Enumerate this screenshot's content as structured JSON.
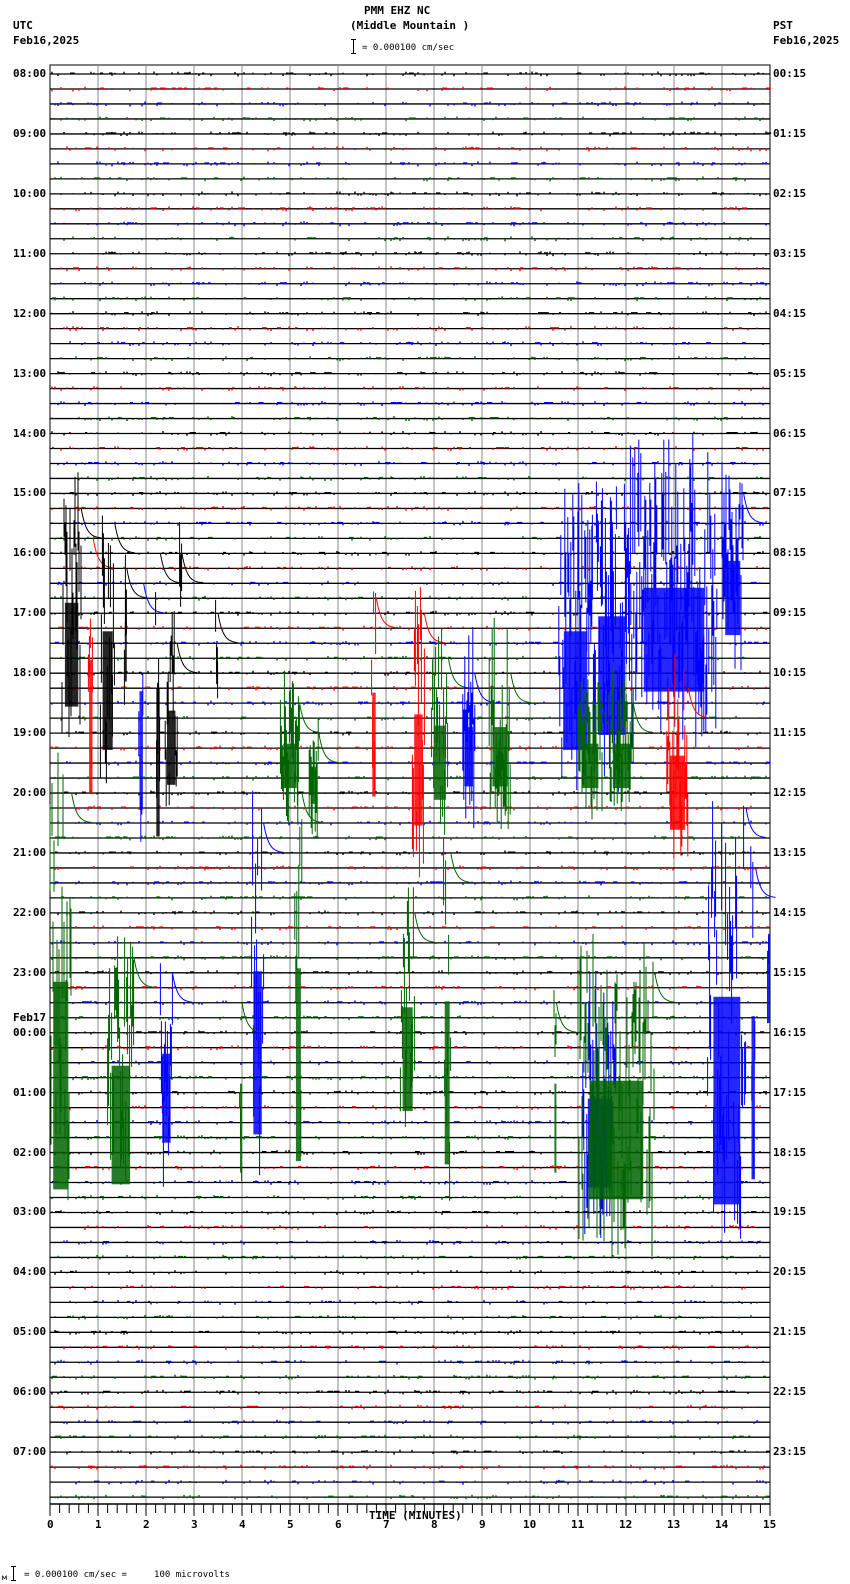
{
  "header": {
    "station": "PMM EHZ NC",
    "location": "(Middle Mountain )",
    "scale_label": "= 0.000100 cm/sec",
    "left_tz": "UTC",
    "left_date": "Feb16,2025",
    "right_tz": "PST",
    "right_date": "Feb16,2025"
  },
  "footer": {
    "legend": "= 0.000100 cm/sec =     100 microvolts",
    "legend_prefix": "м"
  },
  "chart_data": {
    "type": "line",
    "title": "PMM EHZ NC (Middle Mountain )",
    "subtitle": "= 0.000100 cm/sec",
    "xlabel": "TIME (MINUTES)",
    "ylabel": "",
    "x_ticks": [
      "0",
      "1",
      "2",
      "3",
      "4",
      "5",
      "6",
      "7",
      "8",
      "9",
      "10",
      "11",
      "12",
      "13",
      "14",
      "15"
    ],
    "xlim": [
      0,
      15
    ],
    "grid": true,
    "traces_per_hour": 4,
    "trace_count": 96,
    "trace_colors": [
      "#000000",
      "#ff0000",
      "#0000ff",
      "#006400"
    ],
    "left_labels": [
      {
        "row": 0,
        "text": "08:00"
      },
      {
        "row": 4,
        "text": "09:00"
      },
      {
        "row": 8,
        "text": "10:00"
      },
      {
        "row": 12,
        "text": "11:00"
      },
      {
        "row": 16,
        "text": "12:00"
      },
      {
        "row": 20,
        "text": "13:00"
      },
      {
        "row": 24,
        "text": "14:00"
      },
      {
        "row": 28,
        "text": "15:00"
      },
      {
        "row": 32,
        "text": "16:00"
      },
      {
        "row": 36,
        "text": "17:00"
      },
      {
        "row": 40,
        "text": "18:00"
      },
      {
        "row": 44,
        "text": "19:00"
      },
      {
        "row": 48,
        "text": "20:00"
      },
      {
        "row": 52,
        "text": "21:00"
      },
      {
        "row": 56,
        "text": "22:00"
      },
      {
        "row": 60,
        "text": "23:00"
      },
      {
        "row": 64,
        "text": "00:00",
        "date": "Feb17"
      },
      {
        "row": 68,
        "text": "01:00"
      },
      {
        "row": 72,
        "text": "02:00"
      },
      {
        "row": 76,
        "text": "03:00"
      },
      {
        "row": 80,
        "text": "04:00"
      },
      {
        "row": 84,
        "text": "05:00"
      },
      {
        "row": 88,
        "text": "06:00"
      },
      {
        "row": 92,
        "text": "07:00"
      }
    ],
    "right_labels": [
      "00:15",
      "01:15",
      "02:15",
      "03:15",
      "04:15",
      "05:15",
      "06:15",
      "07:15",
      "08:15",
      "09:15",
      "10:15",
      "11:15",
      "12:15",
      "13:15",
      "14:15",
      "15:15",
      "16:15",
      "17:15",
      "18:15",
      "19:15",
      "20:15",
      "21:15",
      "22:15",
      "23:15"
    ],
    "events": [
      {
        "row": 29,
        "x0": 0.25,
        "x1": 0.65,
        "rows_down": 14,
        "amp": 50,
        "color": "#000000",
        "tail": true
      },
      {
        "row": 31,
        "x0": 0.8,
        "x1": 0.9,
        "rows_down": 18,
        "amp": 30,
        "color": "#ff0000",
        "tail": true
      },
      {
        "row": 30,
        "x0": 1.05,
        "x1": 1.35,
        "rows_down": 16,
        "amp": 45,
        "color": "#000000",
        "tail": true
      },
      {
        "row": 33,
        "x0": 1.55,
        "x1": 1.6,
        "rows_down": 8,
        "amp": 45,
        "color": "#000000",
        "tail": true
      },
      {
        "row": 34,
        "x0": 1.85,
        "x1": 1.95,
        "rows_down": 16,
        "amp": 30,
        "color": "#0000ff",
        "tail": true
      },
      {
        "row": 32,
        "x0": 2.2,
        "x1": 2.3,
        "rows_down": 20,
        "amp": 45,
        "color": "#000000",
        "tail": true
      },
      {
        "row": 38,
        "x0": 2.4,
        "x1": 2.65,
        "rows_down": 10,
        "amp": 35,
        "color": "#000000",
        "tail": true
      },
      {
        "row": 32,
        "x0": 2.7,
        "x1": 2.75,
        "rows_down": 2,
        "amp": 40,
        "color": "#000000",
        "tail": true
      },
      {
        "row": 36,
        "x0": 3.45,
        "x1": 3.5,
        "rows_down": 5,
        "amp": 30,
        "color": "#000000",
        "tail": true
      },
      {
        "row": 42,
        "x0": 4.8,
        "x1": 5.2,
        "rows_down": 6,
        "amp": 50,
        "color": "#006400",
        "tail": true
      },
      {
        "row": 44,
        "x0": 5.4,
        "x1": 5.6,
        "rows_down": 5,
        "amp": 40,
        "color": "#006400",
        "tail": true
      },
      {
        "row": 35,
        "x0": 6.7,
        "x1": 6.8,
        "rows_down": 14,
        "amp": 35,
        "color": "#ff0000",
        "tail": true
      },
      {
        "row": 36,
        "x0": 7.55,
        "x1": 7.8,
        "rows_down": 15,
        "amp": 60,
        "color": "#ff0000",
        "tail": true
      },
      {
        "row": 39,
        "x0": 7.95,
        "x1": 8.3,
        "rows_down": 10,
        "amp": 40,
        "color": "#006400",
        "tail": true
      },
      {
        "row": 40,
        "x0": 8.6,
        "x1": 8.85,
        "rows_down": 8,
        "amp": 60,
        "color": "#0000ff",
        "tail": true
      },
      {
        "row": 40,
        "x0": 9.15,
        "x1": 9.6,
        "rows_down": 8,
        "amp": 60,
        "color": "#006400",
        "tail": true
      },
      {
        "row": 30,
        "x0": 10.6,
        "x1": 11.3,
        "rows_down": 16,
        "amp": 70,
        "color": "#0000ff",
        "tail": false
      },
      {
        "row": 29,
        "x0": 11.3,
        "x1": 12.1,
        "rows_down": 16,
        "amp": 70,
        "color": "#0000ff",
        "tail": false
      },
      {
        "row": 42,
        "x0": 11.0,
        "x1": 11.5,
        "rows_down": 6,
        "amp": 40,
        "color": "#006400",
        "tail": true
      },
      {
        "row": 42,
        "x0": 11.65,
        "x1": 12.15,
        "rows_down": 6,
        "amp": 40,
        "color": "#006400",
        "tail": true
      },
      {
        "row": 28,
        "x0": 12.1,
        "x1": 13.9,
        "rows_down": 14,
        "amp": 70,
        "color": "#0000ff",
        "tail": false
      },
      {
        "row": 41,
        "x0": 12.85,
        "x1": 13.3,
        "rows_down": 10,
        "amp": 50,
        "color": "#ff0000",
        "tail": true
      },
      {
        "row": 28,
        "x0": 14.0,
        "x1": 14.45,
        "rows_down": 10,
        "amp": 60,
        "color": "#0000ff",
        "tail": true
      },
      {
        "row": 48,
        "x0": 0.0,
        "x1": 0.45,
        "rows_down": 28,
        "amp": 60,
        "color": "#006400",
        "tail": true
      },
      {
        "row": 59,
        "x0": 1.2,
        "x1": 1.75,
        "rows_down": 16,
        "amp": 60,
        "color": "#006400",
        "tail": true
      },
      {
        "row": 60,
        "x0": 2.3,
        "x1": 2.55,
        "rows_down": 12,
        "amp": 55,
        "color": "#0000ff",
        "tail": true
      },
      {
        "row": 50,
        "x0": 4.2,
        "x1": 4.45,
        "rows_down": 22,
        "amp": 60,
        "color": "#0000ff",
        "tail": true
      },
      {
        "row": 62,
        "x0": 3.95,
        "x1": 4.0,
        "rows_down": 12,
        "amp": 20,
        "color": "#006400",
        "tail": true
      },
      {
        "row": 48,
        "x0": 5.1,
        "x1": 5.25,
        "rows_down": 26,
        "amp": 50,
        "color": "#006400",
        "tail": true
      },
      {
        "row": 56,
        "x0": 7.3,
        "x1": 7.6,
        "rows_down": 14,
        "amp": 50,
        "color": "#006400",
        "tail": true
      },
      {
        "row": 52,
        "x0": 8.2,
        "x1": 8.35,
        "rows_down": 22,
        "amp": 50,
        "color": "#006400",
        "tail": true
      },
      {
        "row": 62,
        "x0": 10.5,
        "x1": 10.55,
        "rows_down": 12,
        "amp": 20,
        "color": "#006400",
        "tail": true
      },
      {
        "row": 63,
        "x0": 11.1,
        "x1": 11.8,
        "rows_down": 12,
        "amp": 60,
        "color": "#0000ff",
        "tail": false
      },
      {
        "row": 60,
        "x0": 11.0,
        "x1": 12.6,
        "rows_down": 16,
        "amp": 55,
        "color": "#006400",
        "tail": true
      },
      {
        "row": 49,
        "x0": 13.7,
        "x1": 14.5,
        "rows_down": 28,
        "amp": 60,
        "color": "#0000ff",
        "tail": true
      },
      {
        "row": 53,
        "x0": 14.6,
        "x1": 14.7,
        "rows_down": 22,
        "amp": 40,
        "color": "#0000ff",
        "tail": true
      },
      {
        "row": 52,
        "x0": 14.95,
        "x1": 15.0,
        "rows_down": 12,
        "amp": 40,
        "color": "#0000ff",
        "tail": false
      }
    ]
  }
}
